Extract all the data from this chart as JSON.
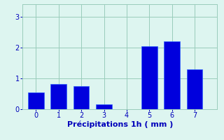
{
  "categories": [
    0,
    1,
    2,
    3,
    4,
    5,
    6,
    7
  ],
  "values": [
    0.55,
    0.82,
    0.75,
    0.15,
    0.0,
    2.05,
    2.2,
    1.3
  ],
  "bar_color": "#0000dd",
  "bar_edgecolor": "#3366ff",
  "background_color": "#ddf5f0",
  "plot_bg_color": "#ddf5f0",
  "xlabel": "Précipitations 1h ( mm )",
  "ylim": [
    0,
    3.4
  ],
  "xlim": [
    -0.6,
    8.0
  ],
  "yticks": [
    0,
    1,
    2,
    3
  ],
  "xticks": [
    0,
    1,
    2,
    3,
    4,
    5,
    6,
    7
  ],
  "grid_color": "#99ccbb",
  "xlabel_fontsize": 8,
  "tick_fontsize": 7,
  "tick_color": "#0000bb",
  "label_color": "#0000bb",
  "bar_width": 0.7
}
